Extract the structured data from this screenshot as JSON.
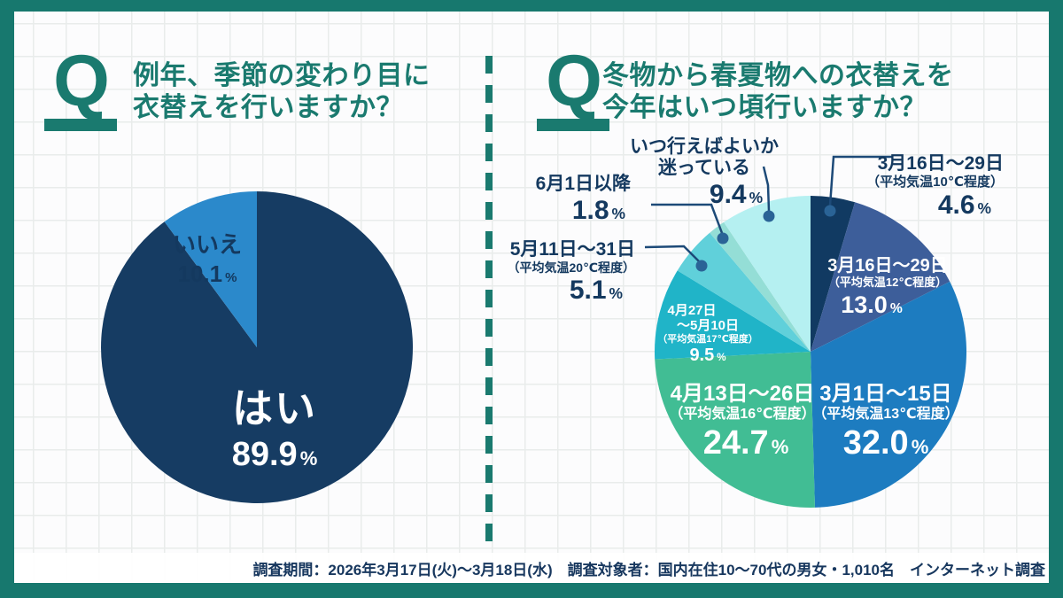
{
  "percent_sign": "%",
  "accent": {
    "teal": "#1a7a6f",
    "navy_text": "#14395f",
    "leader_line": "#1d4a78",
    "leader_dot": "#2a6396"
  },
  "left_panel": {
    "q_mark": "Q",
    "question_line1": "例年、季節の変わり目に",
    "question_line2": "衣替えを行いますか？"
  },
  "right_panel": {
    "q_mark": "Q",
    "question_line1": "冬物から春夏物への衣替えを",
    "question_line2": "今年はいつ頃行いますか？"
  },
  "chart_data": [
    {
      "type": "pie",
      "title": "例年、季節の変わり目に衣替えを行いますか？",
      "start_angle_deg": 0,
      "direction": "clockwise",
      "slices": [
        {
          "label": "はい",
          "value": 89.9,
          "value_str": "89.9",
          "color": "#163c63"
        },
        {
          "label": "いいえ",
          "value": 10.1,
          "value_str": "10.1",
          "color": "#2b89cb"
        }
      ]
    },
    {
      "type": "pie",
      "title": "冬物から春夏物への衣替えを今年はいつ頃行いますか？",
      "start_angle_deg": 0,
      "direction": "clockwise",
      "slices": [
        {
          "label": "3月16日〜29日",
          "sublabel": "（平均気温10℃程度）",
          "value": 4.6,
          "value_str": "4.6",
          "color": "#113a62"
        },
        {
          "label": "3月16日〜29日",
          "sublabel": "（平均気温12℃程度）",
          "value": 13.0,
          "value_str": "13.0",
          "color": "#3d5e9a"
        },
        {
          "label": "3月1日〜15日",
          "sublabel": "（平均気温13℃程度）",
          "value": 32.0,
          "value_str": "32.0",
          "color": "#1d7cc0"
        },
        {
          "label": "4月13日〜26日",
          "sublabel": "（平均気温16℃程度）",
          "value": 24.7,
          "value_str": "24.7",
          "color": "#41bd94"
        },
        {
          "label": "4月27日〜5月10日",
          "sublabel": "（平均気温17℃程度）",
          "value": 9.5,
          "value_str": "9.5",
          "color": "#20b4c8"
        },
        {
          "label": "5月11日〜31日",
          "sublabel": "（平均気温20℃程度）",
          "value": 5.1,
          "value_str": "5.1",
          "color": "#60d0da"
        },
        {
          "label": "6月1日以降",
          "sublabel": "",
          "value": 1.8,
          "value_str": "1.8",
          "color": "#94ded6"
        },
        {
          "label": "いつ行えばよいか迷っている",
          "sublabel": "",
          "value": 9.4,
          "value_str": "9.4",
          "color": "#b5f0f1"
        }
      ]
    }
  ],
  "split_labels": {
    "waffle_line1": "いつ行えばよいか",
    "waffle_line2": "迷っている",
    "apr27_line1": "4月27日",
    "apr27_line2": "〜5月10日"
  },
  "footer": {
    "text": "調査期間：2026年3月17日(火)〜3月18日(水)　調査対象者：国内在住10〜70代の男女・1,010名　インターネット調査"
  }
}
